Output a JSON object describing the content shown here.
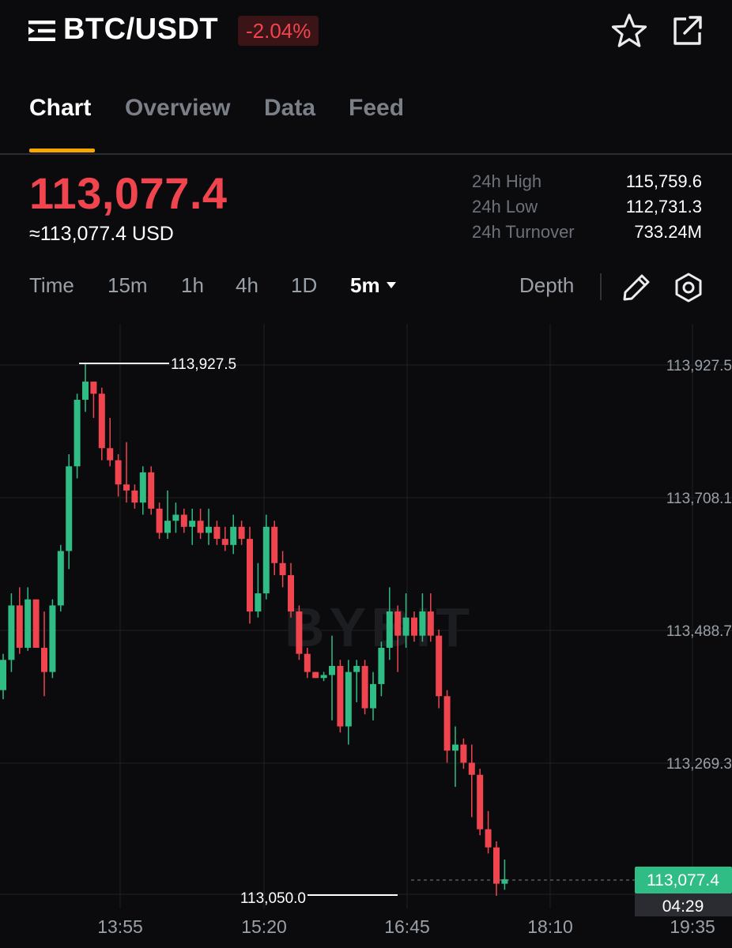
{
  "header": {
    "pair": "BTC/USDT",
    "change": "-2.04%",
    "icons": [
      "menu-icon",
      "star-icon",
      "share-icon"
    ]
  },
  "tabs": [
    {
      "label": "Chart",
      "active": true
    },
    {
      "label": "Overview",
      "active": false
    },
    {
      "label": "Data",
      "active": false
    },
    {
      "label": "Feed",
      "active": false
    }
  ],
  "price": {
    "last": "113,077.4",
    "usd": "≈113,077.4 USD"
  },
  "stats": {
    "high_label": "24h High",
    "high_value": "115,759.6",
    "low_label": "24h Low",
    "low_value": "112,731.3",
    "turnover_label": "24h Turnover",
    "turnover_value": "733.24M"
  },
  "intervals": {
    "time": "Time",
    "m15": "15m",
    "h1": "1h",
    "h4": "4h",
    "d1": "1D",
    "selected": "5m",
    "depth": "Depth"
  },
  "colors": {
    "up": "#2fbd85",
    "down": "#f0454f",
    "accent": "#f7a600"
  },
  "chart_data": {
    "type": "candlestick",
    "watermark": "BYBIT",
    "x_ticks": [
      "13:55",
      "15:20",
      "16:45",
      "18:10",
      "19:35"
    ],
    "y_ticks": [
      "113,927.5",
      "113,708.1",
      "113,488.7",
      "113,269.3"
    ],
    "y_tick_values": [
      113927.5,
      113708.1,
      113488.7,
      113269.3
    ],
    "high_label": "113,927.5",
    "low_label": "113,050.0",
    "current_price": "113,077.4",
    "countdown": "04:29",
    "candles": [
      [
        113390,
        113450,
        113375,
        113440
      ],
      [
        113440,
        113550,
        113420,
        113530
      ],
      [
        113530,
        113560,
        113450,
        113460
      ],
      [
        113460,
        113560,
        113455,
        113540
      ],
      [
        113540,
        113540,
        113460,
        113460
      ],
      [
        113460,
        113520,
        113380,
        113420
      ],
      [
        113420,
        113540,
        113410,
        113530
      ],
      [
        113530,
        113630,
        113520,
        113620
      ],
      [
        113620,
        113780,
        113590,
        113760
      ],
      [
        113760,
        113880,
        113740,
        113870
      ],
      [
        113870,
        113930,
        113850,
        113900
      ],
      [
        113900,
        113900,
        113840,
        113880
      ],
      [
        113880,
        113890,
        113770,
        113790
      ],
      [
        113790,
        113840,
        113760,
        113770
      ],
      [
        113770,
        113780,
        113710,
        113730
      ],
      [
        113730,
        113800,
        113700,
        113720
      ],
      [
        113720,
        113730,
        113690,
        113700
      ],
      [
        113700,
        113760,
        113680,
        113750
      ],
      [
        113750,
        113760,
        113680,
        113690
      ],
      [
        113690,
        113700,
        113640,
        113650
      ],
      [
        113650,
        113720,
        113640,
        113670
      ],
      [
        113670,
        113700,
        113650,
        113680
      ],
      [
        113680,
        113690,
        113650,
        113660
      ],
      [
        113660,
        113690,
        113630,
        113670
      ],
      [
        113670,
        113690,
        113640,
        113650
      ],
      [
        113650,
        113690,
        113630,
        113660
      ],
      [
        113660,
        113670,
        113630,
        113640
      ],
      [
        113640,
        113660,
        113620,
        113630
      ],
      [
        113630,
        113680,
        113615,
        113660
      ],
      [
        113660,
        113670,
        113630,
        113640
      ],
      [
        113640,
        113660,
        113500,
        113520
      ],
      [
        113520,
        113600,
        113510,
        113550
      ],
      [
        113550,
        113680,
        113540,
        113660
      ],
      [
        113660,
        113670,
        113580,
        113600
      ],
      [
        113600,
        113620,
        113560,
        113580
      ],
      [
        113580,
        113600,
        113510,
        113520
      ],
      [
        113520,
        113530,
        113440,
        113450
      ],
      [
        113450,
        113460,
        113410,
        113420
      ],
      [
        113420,
        113420,
        113410,
        113410
      ],
      [
        113410,
        113420,
        113405,
        113415
      ],
      [
        113415,
        113480,
        113340,
        113430
      ],
      [
        113430,
        113440,
        113320,
        113330
      ],
      [
        113330,
        113440,
        113300,
        113420
      ],
      [
        113420,
        113440,
        113370,
        113430
      ],
      [
        113430,
        113440,
        113350,
        113360
      ],
      [
        113360,
        113420,
        113340,
        113400
      ],
      [
        113400,
        113470,
        113380,
        113460
      ],
      [
        113460,
        113560,
        113440,
        113520
      ],
      [
        113520,
        113530,
        113420,
        113480
      ],
      [
        113480,
        113550,
        113460,
        113510
      ],
      [
        113510,
        113520,
        113470,
        113480
      ],
      [
        113480,
        113550,
        113470,
        113520
      ],
      [
        113520,
        113550,
        113470,
        113480
      ],
      [
        113480,
        113490,
        113360,
        113380
      ],
      [
        113380,
        113390,
        113270,
        113290
      ],
      [
        113290,
        113330,
        113230,
        113300
      ],
      [
        113300,
        113310,
        113260,
        113270
      ],
      [
        113270,
        113300,
        113180,
        113250
      ],
      [
        113250,
        113260,
        113150,
        113160
      ],
      [
        113160,
        113190,
        113120,
        113130
      ],
      [
        113130,
        113140,
        113050,
        113070
      ],
      [
        113070,
        113110,
        113060,
        113077.4
      ]
    ]
  }
}
